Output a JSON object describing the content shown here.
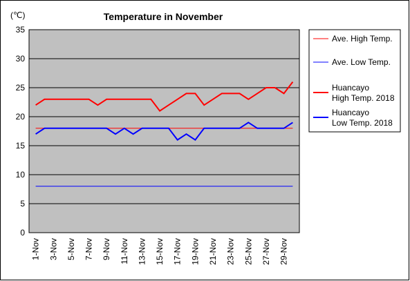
{
  "chart_data": {
    "type": "line",
    "title": "Temperature in November",
    "unit_label": "(℃)",
    "ylim": [
      0,
      35
    ],
    "y_ticks": [
      "0",
      "5",
      "10",
      "15",
      "20",
      "25",
      "30",
      "35"
    ],
    "grid": "horizontal",
    "legend_position": "right",
    "x": [
      "1-Nov",
      "2-Nov",
      "3-Nov",
      "4-Nov",
      "5-Nov",
      "6-Nov",
      "7-Nov",
      "8-Nov",
      "9-Nov",
      "10-Nov",
      "11-Nov",
      "12-Nov",
      "13-Nov",
      "14-Nov",
      "15-Nov",
      "16-Nov",
      "17-Nov",
      "18-Nov",
      "19-Nov",
      "20-Nov",
      "21-Nov",
      "22-Nov",
      "23-Nov",
      "24-Nov",
      "25-Nov",
      "26-Nov",
      "27-Nov",
      "28-Nov",
      "29-Nov",
      "30-Nov"
    ],
    "x_tick_labels": [
      "1-Nov",
      "3-Nov",
      "5-Nov",
      "7-Nov",
      "9-Nov",
      "11-Nov",
      "13-Nov",
      "15-Nov",
      "17-Nov",
      "19-Nov",
      "21-Nov",
      "23-Nov",
      "25-Nov",
      "27-Nov",
      "29-Nov"
    ],
    "series": [
      {
        "name": "Ave. High Temp.",
        "color": "#ff0000",
        "style": "thin",
        "values": [
          18,
          18,
          18,
          18,
          18,
          18,
          18,
          18,
          18,
          18,
          18,
          18,
          18,
          18,
          18,
          18,
          18,
          18,
          18,
          18,
          18,
          18,
          18,
          18,
          18,
          18,
          18,
          18,
          18,
          18
        ]
      },
      {
        "name": "Ave. Low Temp.",
        "color": "#0000ff",
        "style": "thin",
        "values": [
          8,
          8,
          8,
          8,
          8,
          8,
          8,
          8,
          8,
          8,
          8,
          8,
          8,
          8,
          8,
          8,
          8,
          8,
          8,
          8,
          8,
          8,
          8,
          8,
          8,
          8,
          8,
          8,
          8,
          8
        ]
      },
      {
        "name": "Huancayo\nHigh Temp. 2018",
        "color": "#ff0000",
        "style": "thick",
        "values": [
          22,
          23,
          23,
          23,
          23,
          23,
          23,
          22,
          23,
          23,
          23,
          23,
          23,
          23,
          21,
          22,
          23,
          24,
          24,
          22,
          23,
          24,
          24,
          24,
          23,
          24,
          25,
          25,
          24,
          26
        ]
      },
      {
        "name": "Huancayo\nLow Temp. 2018",
        "color": "#0000ff",
        "style": "thick",
        "values": [
          17,
          18,
          18,
          18,
          18,
          18,
          18,
          18,
          18,
          17,
          18,
          17,
          18,
          18,
          18,
          18,
          16,
          17,
          16,
          18,
          18,
          18,
          18,
          18,
          19,
          18,
          18,
          18,
          18,
          19
        ]
      }
    ]
  }
}
